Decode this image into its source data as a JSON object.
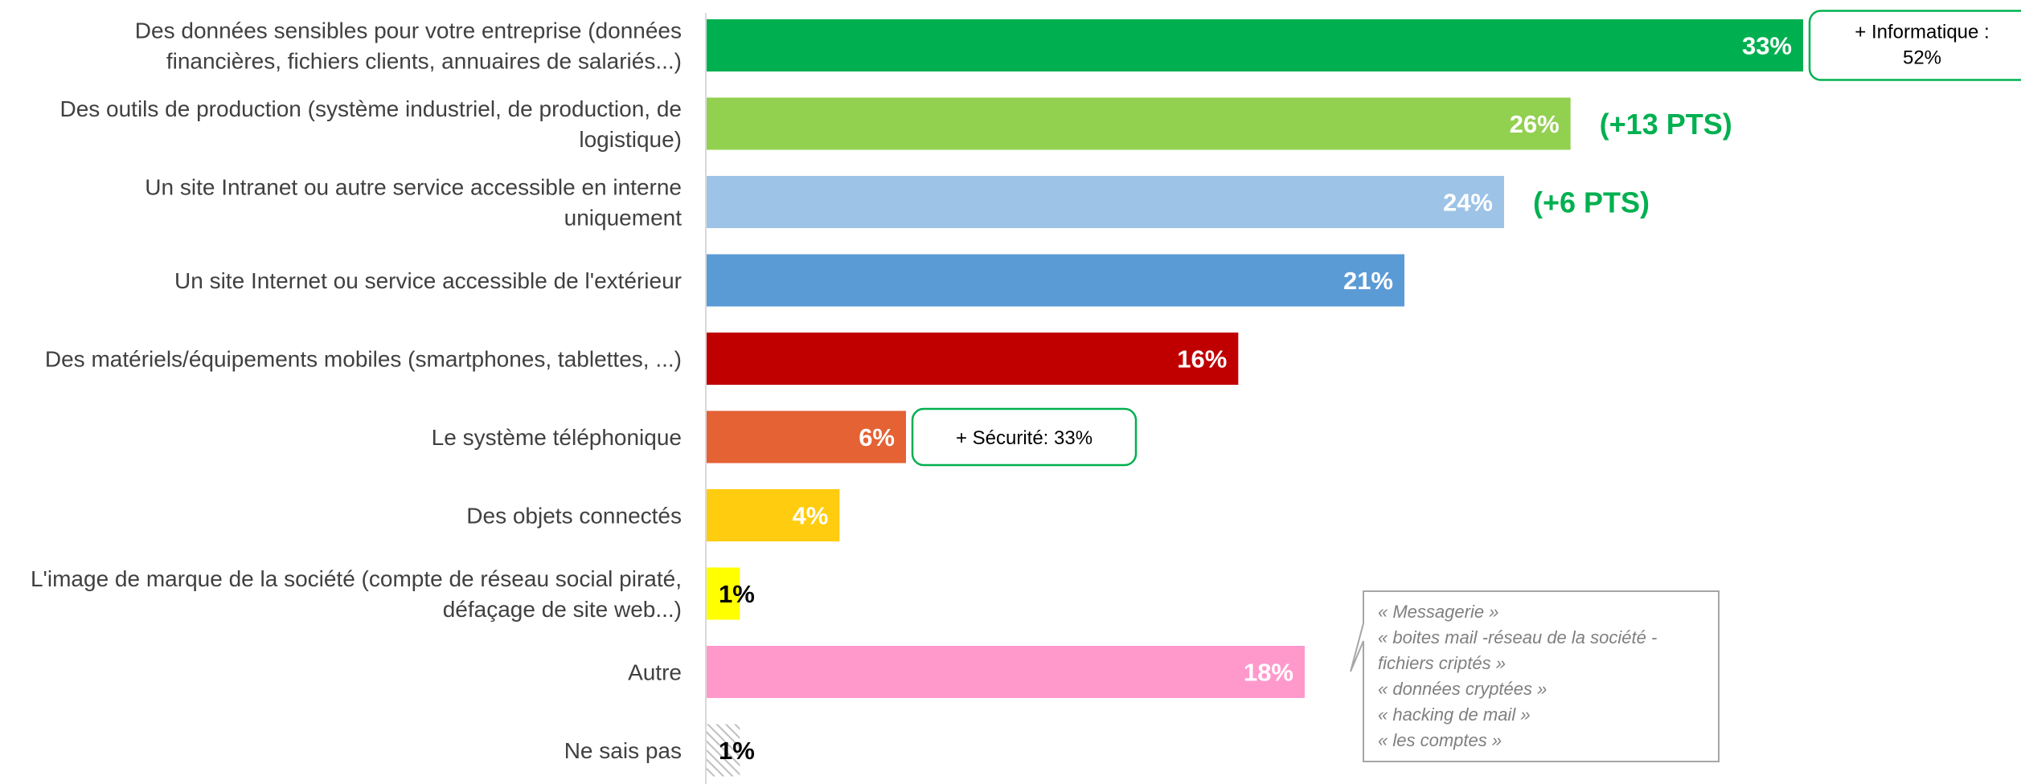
{
  "chart_data": {
    "type": "bar",
    "orientation": "horizontal",
    "unit": "%",
    "xlim": [
      0,
      35
    ],
    "categories": [
      [
        "Des données sensibles pour votre entreprise (données",
        "financières, fichiers clients, annuaires de salariés...)"
      ],
      [
        "Des outils de production (système industriel, de production, de",
        "logistique)"
      ],
      [
        "Un site Intranet ou autre service accessible en interne",
        "uniquement"
      ],
      [
        "Un site Internet ou service accessible de l'extérieur"
      ],
      [
        "Des matériels/équipements mobiles (smartphones, tablettes, ...)"
      ],
      [
        "Le système téléphonique"
      ],
      [
        "Des objets connectés"
      ],
      [
        "L'image de marque de la société (compte de réseau social piraté,",
        "défaçage de site web...)"
      ],
      [
        "Autre"
      ],
      [
        "Ne sais pas"
      ]
    ],
    "values": [
      33,
      26,
      24,
      21,
      16,
      6,
      4,
      1,
      18,
      1
    ],
    "labels": [
      "33%",
      "26%",
      "24%",
      "21%",
      "16%",
      "6%",
      "4%",
      "1%",
      "18%",
      "1%"
    ],
    "colors": [
      "#00b050",
      "#92d050",
      "#9dc3e6",
      "#5b9bd5",
      "#c00000",
      "#e46234",
      "#ffcc0f",
      "#ffff00",
      "#ff99cc",
      "hatch"
    ],
    "label_colors": [
      "#ffffff",
      "#ffffff",
      "#ffffff",
      "#ffffff",
      "#ffffff",
      "#ffffff",
      "#ffffff",
      "#000000",
      "#ffffff",
      "#000000"
    ],
    "annotations": [
      {
        "bar": 0,
        "kind": "box",
        "lines": [
          "+ Informatique :",
          "52%"
        ]
      },
      {
        "bar": 1,
        "kind": "pts",
        "text": "(+13 PTS)"
      },
      {
        "bar": 2,
        "kind": "pts",
        "text": "(+6 PTS)"
      },
      {
        "bar": 5,
        "kind": "box",
        "lines": [
          "+ Sécurité: 33%"
        ]
      }
    ],
    "comment_box": {
      "bar": 8,
      "lines": [
        "« Messagerie »",
        "« boites mail -réseau de la société -",
        "fichiers criptés »",
        "« données cryptées »",
        "« hacking de mail »",
        "« les comptes »"
      ]
    },
    "accent_color": "#00b050",
    "comment_color": "#7f7f7f"
  }
}
